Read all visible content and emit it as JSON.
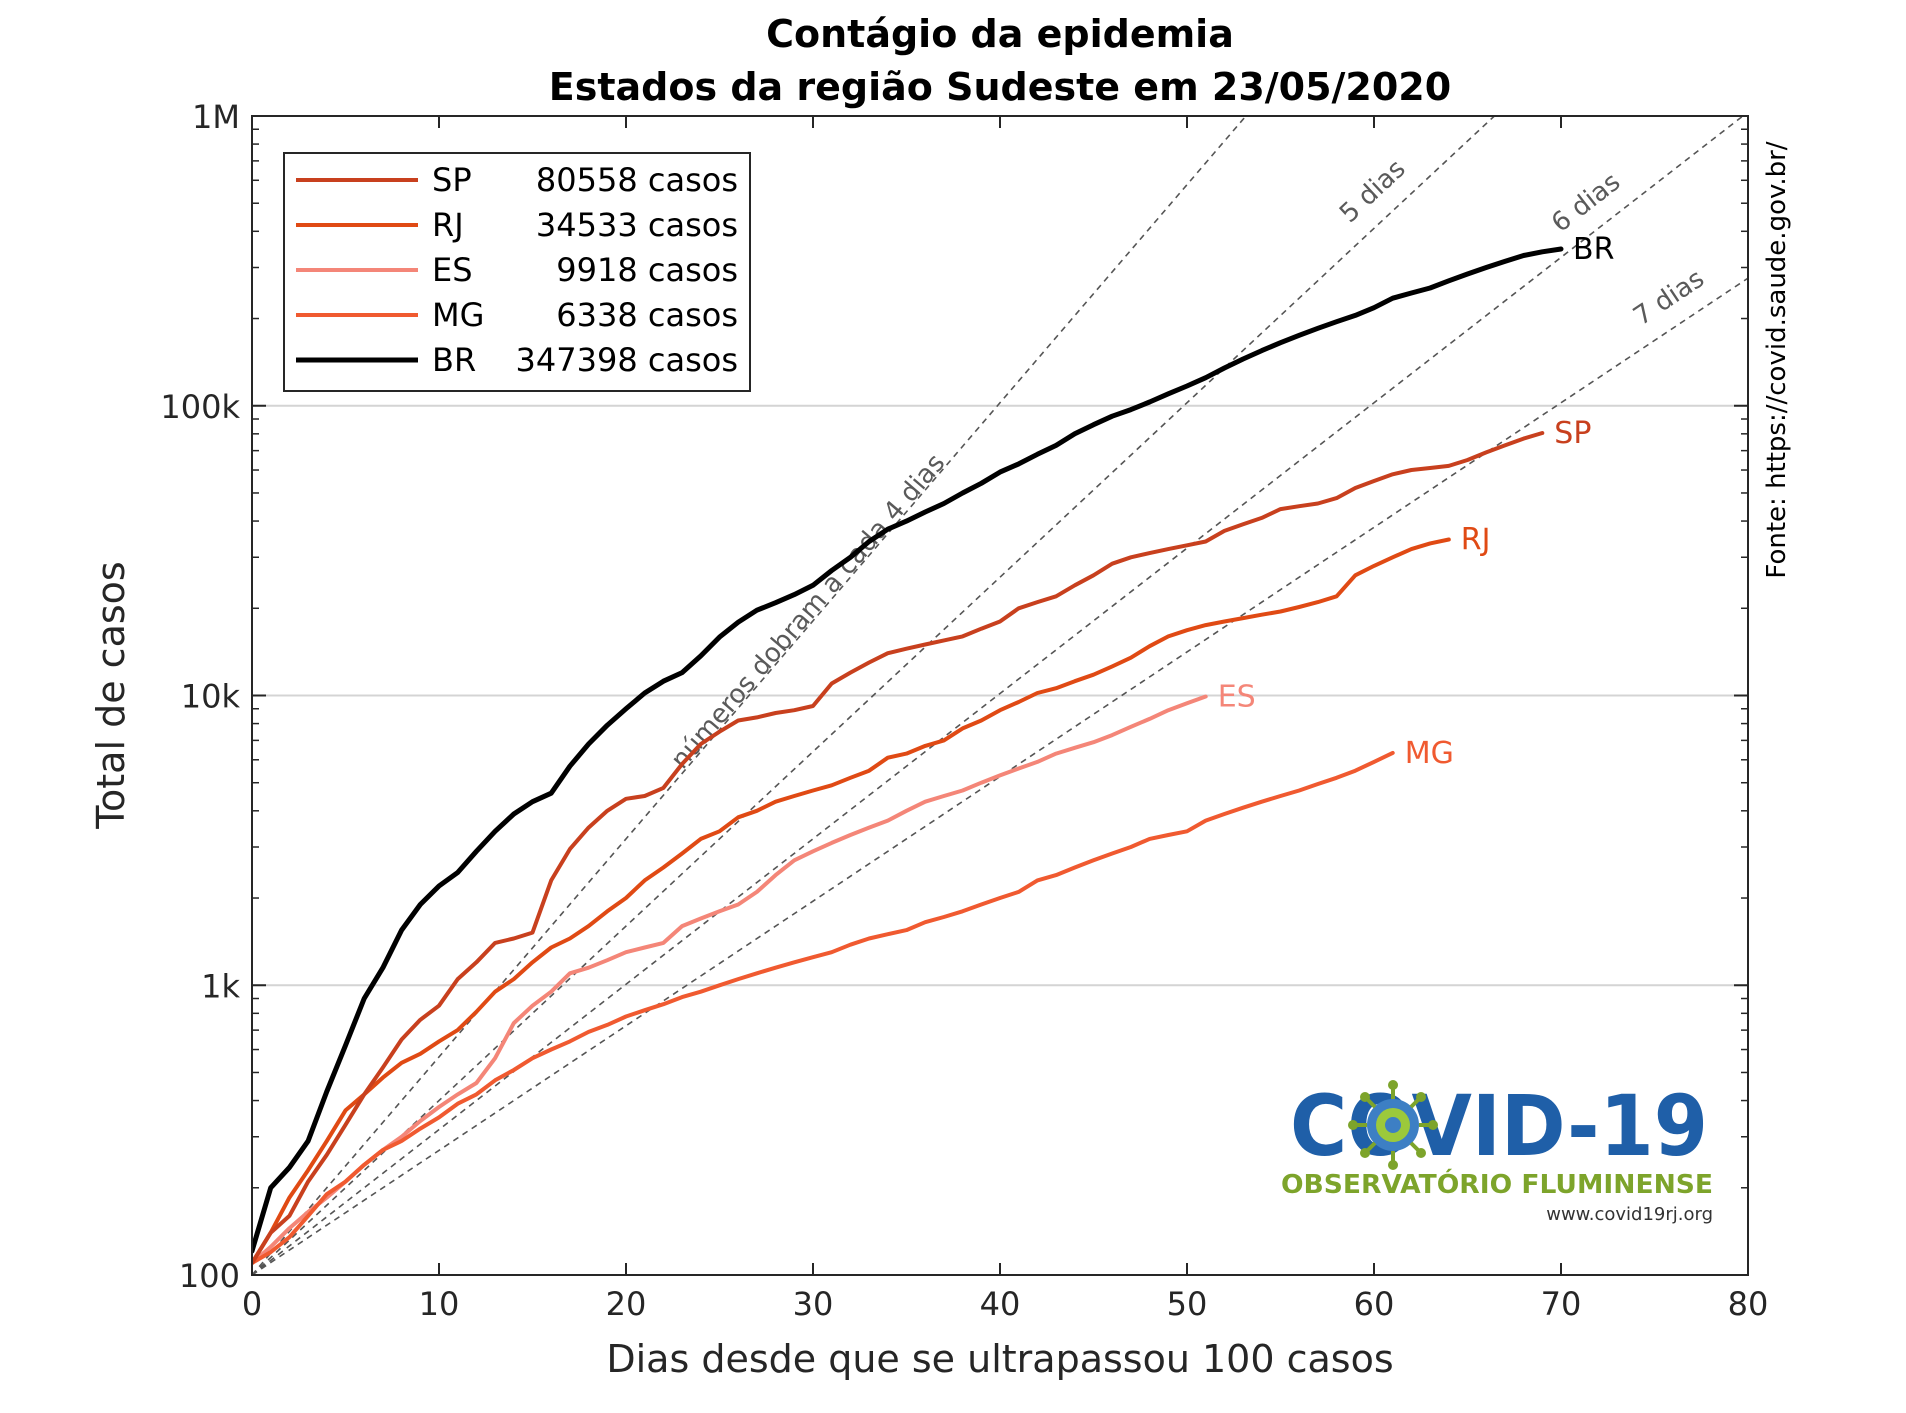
{
  "chart_data": {
    "type": "line",
    "title": "Contágio da epidemia",
    "subtitle": "Estados da região Sudeste em 23/05/2020",
    "xlabel": "Dias desde que se ultrapassou 100 casos",
    "ylabel": "Total de casos",
    "xlim": [
      0,
      80
    ],
    "ylim": [
      100,
      1000000
    ],
    "yscale": "log",
    "grid": "horizontal",
    "legend_placement": "top-left",
    "x_ticks": [
      0,
      10,
      20,
      30,
      40,
      50,
      60,
      70,
      80
    ],
    "x_tick_labels": [
      "0",
      "10",
      "20",
      "30",
      "40",
      "50",
      "60",
      "70",
      "80"
    ],
    "y_ticks": [
      100,
      1000,
      10000,
      100000,
      1000000
    ],
    "y_tick_labels": [
      "100",
      "1k",
      "10k",
      "100k",
      "1M"
    ],
    "source_note": "Fonte: https://covid.saude.gov.br/",
    "reference_lines": [
      {
        "label": "números dobram a cada 4 dias",
        "doubling_days": 4
      },
      {
        "label": "5 dias",
        "doubling_days": 5
      },
      {
        "label": "6 dias",
        "doubling_days": 6
      },
      {
        "label": "7 dias",
        "doubling_days": 7
      }
    ],
    "series": [
      {
        "name": "SP",
        "legend_value": "80558 casos",
        "color": "#c8401e",
        "end_label": "SP",
        "x": [
          0,
          1,
          2,
          3,
          4,
          5,
          6,
          7,
          8,
          9,
          10,
          11,
          12,
          13,
          14,
          15,
          16,
          17,
          18,
          19,
          20,
          21,
          22,
          23,
          24,
          25,
          26,
          27,
          28,
          29,
          30,
          31,
          32,
          33,
          34,
          35,
          36,
          37,
          38,
          39,
          40,
          41,
          42,
          43,
          44,
          45,
          46,
          47,
          48,
          49,
          50,
          51,
          52,
          53,
          54,
          55,
          56,
          57,
          58,
          59,
          60,
          61,
          62,
          63,
          64,
          65,
          66,
          67,
          68,
          69
        ],
        "y": [
          110,
          140,
          160,
          210,
          260,
          330,
          420,
          520,
          650,
          760,
          850,
          1050,
          1200,
          1400,
          1450,
          1520,
          2300,
          2950,
          3500,
          4000,
          4400,
          4500,
          4800,
          5800,
          6800,
          7500,
          8200,
          8400,
          8700,
          8900,
          9200,
          11000,
          12000,
          13000,
          14000,
          14500,
          15000,
          15500,
          16000,
          17000,
          18000,
          20000,
          21000,
          22000,
          24000,
          26000,
          28500,
          30000,
          31000,
          32000,
          33000,
          34000,
          37000,
          39000,
          41000,
          44000,
          45000,
          46000,
          48000,
          52000,
          55000,
          58000,
          60000,
          61000,
          62000,
          65000,
          69000,
          73000,
          77000,
          80558
        ]
      },
      {
        "name": "RJ",
        "legend_value": "34533 casos",
        "color": "#e04a14",
        "end_label": "RJ",
        "x": [
          0,
          1,
          2,
          3,
          4,
          5,
          6,
          7,
          8,
          9,
          10,
          11,
          12,
          13,
          14,
          15,
          16,
          17,
          18,
          19,
          20,
          21,
          22,
          23,
          24,
          25,
          26,
          27,
          28,
          29,
          30,
          31,
          32,
          33,
          34,
          35,
          36,
          37,
          38,
          39,
          40,
          41,
          42,
          43,
          44,
          45,
          46,
          47,
          48,
          49,
          50,
          51,
          52,
          53,
          54,
          55,
          56,
          57,
          58,
          59,
          60,
          61,
          62,
          63,
          64
        ],
        "y": [
          110,
          140,
          185,
          230,
          290,
          370,
          420,
          480,
          540,
          580,
          640,
          700,
          810,
          950,
          1050,
          1200,
          1350,
          1450,
          1600,
          1800,
          2000,
          2300,
          2550,
          2850,
          3200,
          3400,
          3800,
          4000,
          4300,
          4500,
          4700,
          4900,
          5200,
          5500,
          6100,
          6300,
          6700,
          7000,
          7700,
          8200,
          8900,
          9500,
          10200,
          10600,
          11200,
          11800,
          12600,
          13500,
          14800,
          16000,
          16800,
          17500,
          18000,
          18500,
          19000,
          19500,
          20200,
          21000,
          22000,
          26000,
          28000,
          30000,
          32000,
          33500,
          34533
        ]
      },
      {
        "name": "ES",
        "legend_value": "9918 casos",
        "color": "#f48678",
        "end_label": "ES",
        "x": [
          0,
          1,
          2,
          3,
          4,
          5,
          6,
          7,
          8,
          9,
          10,
          11,
          12,
          13,
          14,
          15,
          16,
          17,
          18,
          19,
          20,
          21,
          22,
          23,
          24,
          25,
          26,
          27,
          28,
          29,
          30,
          31,
          32,
          33,
          34,
          35,
          36,
          37,
          38,
          39,
          40,
          41,
          42,
          43,
          44,
          45,
          46,
          47,
          48,
          49,
          50,
          51
        ],
        "y": [
          110,
          125,
          145,
          165,
          185,
          210,
          240,
          270,
          300,
          340,
          380,
          420,
          460,
          560,
          740,
          850,
          950,
          1100,
          1150,
          1220,
          1300,
          1350,
          1400,
          1600,
          1700,
          1800,
          1900,
          2100,
          2400,
          2700,
          2900,
          3100,
          3300,
          3500,
          3700,
          4000,
          4300,
          4500,
          4700,
          5000,
          5300,
          5600,
          5900,
          6300,
          6600,
          6900,
          7300,
          7800,
          8300,
          8900,
          9400,
          9918
        ]
      },
      {
        "name": "MG",
        "legend_value": "6338 casos",
        "color": "#f05a30",
        "end_label": "MG",
        "x": [
          0,
          1,
          2,
          3,
          4,
          5,
          6,
          7,
          8,
          9,
          10,
          11,
          12,
          13,
          14,
          15,
          16,
          17,
          18,
          19,
          20,
          21,
          22,
          23,
          24,
          25,
          26,
          27,
          28,
          29,
          30,
          31,
          32,
          33,
          34,
          35,
          36,
          37,
          38,
          39,
          40,
          41,
          42,
          43,
          44,
          45,
          46,
          47,
          48,
          49,
          50,
          51,
          52,
          53,
          54,
          55,
          56,
          57,
          58,
          59,
          60,
          61
        ],
        "y": [
          110,
          120,
          135,
          160,
          190,
          210,
          240,
          270,
          290,
          320,
          350,
          390,
          420,
          470,
          510,
          560,
          600,
          640,
          690,
          730,
          780,
          820,
          860,
          910,
          950,
          1000,
          1050,
          1100,
          1150,
          1200,
          1250,
          1300,
          1380,
          1450,
          1500,
          1550,
          1650,
          1720,
          1800,
          1900,
          2000,
          2100,
          2300,
          2400,
          2550,
          2700,
          2850,
          3000,
          3200,
          3300,
          3400,
          3700,
          3900,
          4100,
          4300,
          4500,
          4700,
          4950,
          5200,
          5500,
          5900,
          6338
        ]
      },
      {
        "name": "BR",
        "legend_value": "347398 casos",
        "color": "#000000",
        "end_label": "BR",
        "x": [
          0,
          1,
          2,
          3,
          4,
          5,
          6,
          7,
          8,
          9,
          10,
          11,
          12,
          13,
          14,
          15,
          16,
          17,
          18,
          19,
          20,
          21,
          22,
          23,
          24,
          25,
          26,
          27,
          28,
          29,
          30,
          31,
          32,
          33,
          34,
          35,
          36,
          37,
          38,
          39,
          40,
          41,
          42,
          43,
          44,
          45,
          46,
          47,
          48,
          49,
          50,
          51,
          52,
          53,
          54,
          55,
          56,
          57,
          58,
          59,
          60,
          61,
          62,
          63,
          64,
          65,
          66,
          67,
          68,
          69,
          70
        ],
        "y": [
          121,
          200,
          235,
          290,
          430,
          620,
          900,
          1150,
          1550,
          1900,
          2200,
          2450,
          2900,
          3400,
          3900,
          4300,
          4600,
          5700,
          6800,
          7900,
          9000,
          10200,
          11200,
          12000,
          13700,
          15900,
          17900,
          19700,
          20900,
          22300,
          24000,
          27000,
          30000,
          34000,
          37500,
          40000,
          43000,
          46000,
          50000,
          54000,
          59000,
          63000,
          68000,
          73000,
          80000,
          86000,
          92000,
          97000,
          103000,
          110000,
          117000,
          125000,
          135000,
          145000,
          155000,
          165000,
          175000,
          185000,
          195000,
          205000,
          218000,
          235000,
          245000,
          255000,
          270000,
          285000,
          300000,
          315000,
          330000,
          340000,
          347398
        ]
      }
    ]
  },
  "logo": {
    "main": "COVID-19",
    "sub": "OBSERVATÓRIO FLUMINENSE",
    "url": "www.covid19rj.org"
  }
}
